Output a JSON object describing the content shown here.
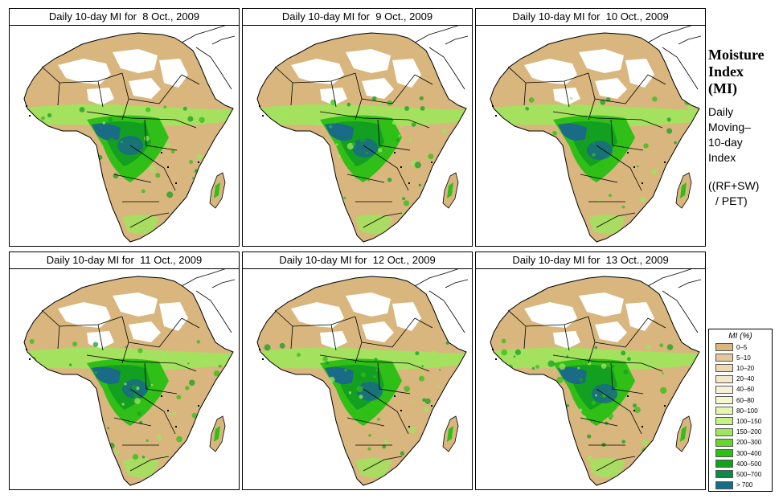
{
  "panels": [
    {
      "title": "Daily 10-day MI for  8 Oct., 2009",
      "variant": 0
    },
    {
      "title": "Daily 10-day MI for  9 Oct., 2009",
      "variant": 1
    },
    {
      "title": "Daily 10-day MI for  10 Oct., 2009",
      "variant": 2
    },
    {
      "title": "Daily 10-day MI for  11 Oct., 2009",
      "variant": 3
    },
    {
      "title": "Daily 10-day MI for  12 Oct., 2009",
      "variant": 4
    },
    {
      "title": "Daily 10-day MI for  13 Oct., 2009",
      "variant": 5
    }
  ],
  "side": {
    "title_line1": "Moisture",
    "title_line2": "Index",
    "title_line3": "(MI)",
    "desc_line1": "Daily",
    "desc_line2": "Moving–",
    "desc_line3": "10-day",
    "desc_line4": "Index",
    "formula_line1": "((RF+SW)",
    "formula_line2": "/ PET)"
  },
  "legend": {
    "title": "MI (%)",
    "items": [
      {
        "label": "0–5",
        "color": "#d8b67e"
      },
      {
        "label": "5–10",
        "color": "#e2c89a"
      },
      {
        "label": "10–20",
        "color": "#ecd9b4"
      },
      {
        "label": "20–40",
        "color": "#f3e8cc"
      },
      {
        "label": "40–60",
        "color": "#f7f1dc"
      },
      {
        "label": "60–80",
        "color": "#f4f8cc"
      },
      {
        "label": "80–100",
        "color": "#e6f6b0"
      },
      {
        "label": "100–150",
        "color": "#c8f08a"
      },
      {
        "label": "150–200",
        "color": "#9ee65c"
      },
      {
        "label": "200–300",
        "color": "#66d62a"
      },
      {
        "label": "300–400",
        "color": "#2fbf16"
      },
      {
        "label": "400–500",
        "color": "#13a021"
      },
      {
        "label": "500–700",
        "color": "#0d8a4a"
      },
      {
        "label": "> 700",
        "color": "#1a6b85"
      }
    ]
  },
  "colors": {
    "land": "#d8b67e",
    "desert": "#ffffff",
    "sea": "#ffffff",
    "wet_light": "#9ee65c",
    "wet_mid": "#2fbf16",
    "wet_dark": "#13a021",
    "wet_blue": "#1a6b85"
  }
}
